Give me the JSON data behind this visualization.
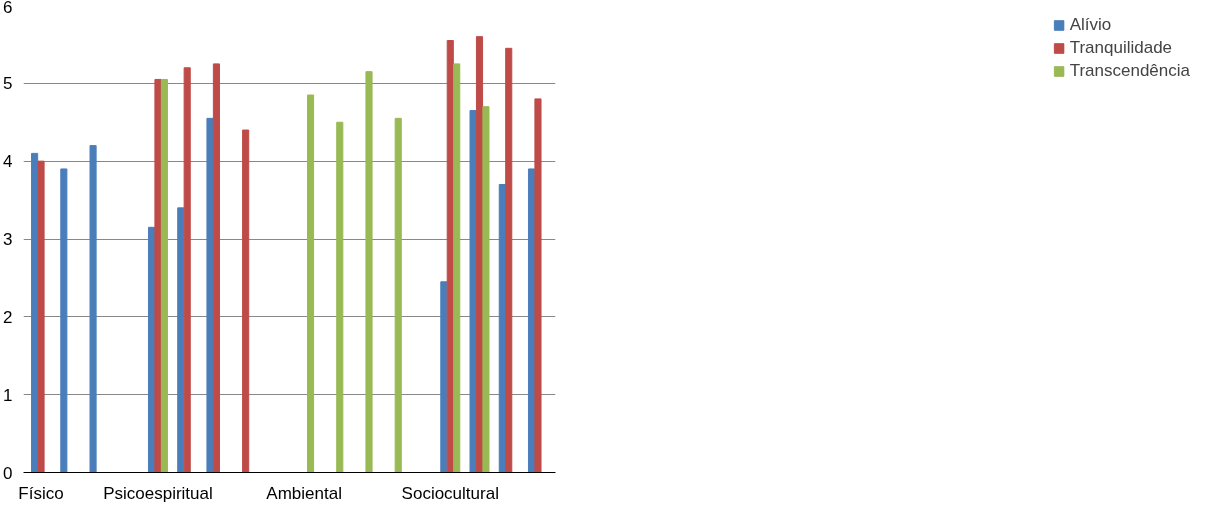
{
  "chart_data": {
    "type": "bar",
    "categories": [
      "Físico",
      null,
      null,
      null,
      "Psicoespiritual",
      null,
      null,
      null,
      null,
      "Ambiental",
      null,
      null,
      null,
      null,
      "Sociocultural",
      null,
      null,
      null
    ],
    "series": [
      {
        "name": "Alívio",
        "color": "#4a7ebb",
        "values": [
          4.1,
          3.9,
          4.2,
          null,
          3.15,
          3.4,
          4.55,
          null,
          null,
          null,
          null,
          null,
          null,
          null,
          2.45,
          4.65,
          3.7,
          3.9
        ]
      },
      {
        "name": "Tranquilidade",
        "color": "#be4b48",
        "values": [
          4.0,
          null,
          null,
          null,
          5.05,
          5.2,
          5.25,
          4.4,
          null,
          null,
          null,
          null,
          null,
          null,
          5.55,
          5.6,
          5.45,
          4.8
        ]
      },
      {
        "name": "Transcendência",
        "color": "#98b954",
        "values": [
          null,
          null,
          null,
          null,
          5.05,
          null,
          null,
          null,
          null,
          4.85,
          4.5,
          5.15,
          4.55,
          null,
          5.25,
          4.7,
          null,
          null
        ]
      }
    ],
    "ylim": [
      0,
      6
    ],
    "yticks": [
      0,
      1,
      2,
      3,
      4,
      5,
      6
    ],
    "grid": "y",
    "legend": "right"
  }
}
